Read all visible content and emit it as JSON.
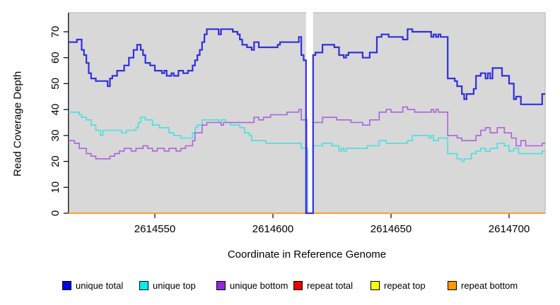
{
  "chart_data": {
    "type": "line",
    "subtype": "step-coverage-plot",
    "title": "",
    "xlabel": "Coordinate in Reference Genome",
    "ylabel": "Read Coverage Depth",
    "xlim": [
      2614513.4,
      2614715.3
    ],
    "ylim": [
      0,
      77.4
    ],
    "x_ticks": [
      2614550,
      2614600,
      2614650,
      2614700
    ],
    "y_ticks": [
      0,
      10,
      20,
      30,
      40,
      50,
      60,
      70
    ],
    "grid": "off",
    "panel_background": "#d8d8d8",
    "panel_border_color": "#b0b0b0",
    "gap_region": {
      "from": 2614614,
      "to": 2614617,
      "fill": "#ffffff",
      "note": "masked region where all unique coverage drops to 0"
    },
    "legend_position": "bottom",
    "legend": [
      {
        "label": "unique total",
        "color": "#0000e8"
      },
      {
        "label": "unique top",
        "color": "#00eeee"
      },
      {
        "label": "unique bottom",
        "color": "#9328e0"
      },
      {
        "label": "repeat total",
        "color": "#e80000"
      },
      {
        "label": "repeat top",
        "color": "#ffff00"
      },
      {
        "label": "repeat bottom",
        "color": "#ff9900"
      }
    ],
    "series": [
      {
        "name": "repeat total",
        "color": "#dd0000",
        "width": 1.5,
        "layer": "below-gap",
        "points": [
          [
            2614513.4,
            0
          ]
        ]
      },
      {
        "name": "repeat top",
        "color": "#ffee00",
        "width": 1.5,
        "layer": "below-gap",
        "points": [
          [
            2614513.4,
            0
          ]
        ]
      },
      {
        "name": "repeat bottom",
        "color": "#ff9d30",
        "width": 2,
        "layer": "below-gap",
        "points": [
          [
            2614513.4,
            0
          ]
        ]
      },
      {
        "name": "unique top",
        "color": "#4adfdf",
        "width": 1.6,
        "layer": "above-gap",
        "points": [
          [
            2614513.4,
            39
          ],
          [
            2614518,
            38
          ],
          [
            2614519,
            37
          ],
          [
            2614521,
            36
          ],
          [
            2614523,
            34
          ],
          [
            2614525,
            32
          ],
          [
            2614527,
            30
          ],
          [
            2614528,
            32
          ],
          [
            2614536,
            31
          ],
          [
            2614538,
            32
          ],
          [
            2614542,
            33
          ],
          [
            2614543,
            35
          ],
          [
            2614544,
            37
          ],
          [
            2614546,
            36
          ],
          [
            2614549,
            34
          ],
          [
            2614552,
            33
          ],
          [
            2614556,
            31
          ],
          [
            2614558,
            30
          ],
          [
            2614561,
            29
          ],
          [
            2614566,
            31
          ],
          [
            2614567,
            33
          ],
          [
            2614568,
            34
          ],
          [
            2614570,
            36
          ],
          [
            2614577,
            35
          ],
          [
            2614578,
            36
          ],
          [
            2614580,
            35
          ],
          [
            2614582,
            34
          ],
          [
            2614586,
            33
          ],
          [
            2614588,
            31
          ],
          [
            2614590,
            30
          ],
          [
            2614591,
            28
          ],
          [
            2614597,
            27
          ],
          [
            2614612,
            25
          ],
          [
            2614614.7,
            0
          ],
          [
            2614617,
            26
          ],
          [
            2614621,
            27
          ],
          [
            2614625,
            26
          ],
          [
            2614628,
            24
          ],
          [
            2614629,
            25
          ],
          [
            2614630,
            24
          ],
          [
            2614631,
            25
          ],
          [
            2614640,
            26
          ],
          [
            2614645,
            28
          ],
          [
            2614648,
            27
          ],
          [
            2614657,
            28
          ],
          [
            2614659,
            30
          ],
          [
            2614666,
            29
          ],
          [
            2614667,
            30
          ],
          [
            2614668,
            28
          ],
          [
            2614670,
            29
          ],
          [
            2614674,
            23
          ],
          [
            2614678,
            21
          ],
          [
            2614680,
            20
          ],
          [
            2614681,
            21
          ],
          [
            2614684,
            23
          ],
          [
            2614686,
            24
          ],
          [
            2614688,
            25
          ],
          [
            2614690,
            24
          ],
          [
            2614692,
            25
          ],
          [
            2614695,
            27
          ],
          [
            2614698,
            26
          ],
          [
            2614700,
            24
          ],
          [
            2614702,
            25
          ],
          [
            2614704,
            23
          ],
          [
            2614714,
            24
          ]
        ]
      },
      {
        "name": "unique bottom",
        "color": "#ab63dc",
        "width": 1.6,
        "layer": "above-gap",
        "points": [
          [
            2614513.4,
            28
          ],
          [
            2614516,
            27
          ],
          [
            2614518,
            25
          ],
          [
            2614521,
            23
          ],
          [
            2614523,
            22
          ],
          [
            2614525,
            21
          ],
          [
            2614531,
            22
          ],
          [
            2614533,
            23
          ],
          [
            2614535,
            24
          ],
          [
            2614537,
            25
          ],
          [
            2614540,
            24
          ],
          [
            2614542,
            25
          ],
          [
            2614545,
            26
          ],
          [
            2614547,
            25
          ],
          [
            2614549,
            24
          ],
          [
            2614551,
            25
          ],
          [
            2614554,
            24
          ],
          [
            2614556,
            25
          ],
          [
            2614559,
            24
          ],
          [
            2614561,
            25
          ],
          [
            2614563,
            26
          ],
          [
            2614566,
            28
          ],
          [
            2614567,
            31
          ],
          [
            2614570,
            34
          ],
          [
            2614572,
            35
          ],
          [
            2614578,
            34
          ],
          [
            2614579,
            35
          ],
          [
            2614592,
            37
          ],
          [
            2614594,
            36
          ],
          [
            2614596,
            37
          ],
          [
            2614599,
            38
          ],
          [
            2614606,
            39
          ],
          [
            2614611,
            40
          ],
          [
            2614612,
            36
          ],
          [
            2614614.35,
            0
          ],
          [
            2614617,
            35
          ],
          [
            2614621,
            37
          ],
          [
            2614627,
            36
          ],
          [
            2614633,
            35
          ],
          [
            2614638,
            34
          ],
          [
            2614641,
            36
          ],
          [
            2614645,
            39
          ],
          [
            2614648,
            40
          ],
          [
            2614650,
            39
          ],
          [
            2614655,
            41
          ],
          [
            2614657,
            40
          ],
          [
            2614660,
            39
          ],
          [
            2614667,
            40
          ],
          [
            2614668,
            39
          ],
          [
            2614669,
            40
          ],
          [
            2614670,
            39
          ],
          [
            2614674,
            30
          ],
          [
            2614678,
            29
          ],
          [
            2614680,
            28
          ],
          [
            2614686,
            30
          ],
          [
            2614688,
            32
          ],
          [
            2614690,
            33
          ],
          [
            2614692,
            31
          ],
          [
            2614695,
            33
          ],
          [
            2614698,
            31
          ],
          [
            2614701,
            29
          ],
          [
            2614703,
            26
          ],
          [
            2614705,
            28
          ],
          [
            2614707,
            26
          ],
          [
            2614714,
            27
          ]
        ]
      },
      {
        "name": "unique total",
        "color": "#3030df",
        "width": 2.2,
        "layer": "above-gap",
        "points": [
          [
            2614513.4,
            66
          ],
          [
            2614517,
            67
          ],
          [
            2614519,
            63
          ],
          [
            2614520,
            61
          ],
          [
            2614521,
            58
          ],
          [
            2614522,
            54
          ],
          [
            2614523,
            52
          ],
          [
            2614525,
            51
          ],
          [
            2614530,
            49
          ],
          [
            2614531,
            52
          ],
          [
            2614532,
            53
          ],
          [
            2614534,
            55
          ],
          [
            2614537,
            57
          ],
          [
            2614539,
            60
          ],
          [
            2614541,
            63
          ],
          [
            2614542.5,
            65
          ],
          [
            2614544,
            63
          ],
          [
            2614545,
            61
          ],
          [
            2614546,
            58
          ],
          [
            2614548,
            57
          ],
          [
            2614550,
            55
          ],
          [
            2614553,
            54
          ],
          [
            2614554,
            55
          ],
          [
            2614555,
            53
          ],
          [
            2614557,
            54
          ],
          [
            2614558,
            53
          ],
          [
            2614560,
            55
          ],
          [
            2614562,
            54
          ],
          [
            2614564,
            55
          ],
          [
            2614566,
            57
          ],
          [
            2614567,
            59
          ],
          [
            2614568,
            61
          ],
          [
            2614569,
            63
          ],
          [
            2614570,
            66
          ],
          [
            2614571,
            69
          ],
          [
            2614572,
            71
          ],
          [
            2614577,
            69
          ],
          [
            2614578,
            71
          ],
          [
            2614583,
            70
          ],
          [
            2614585,
            69
          ],
          [
            2614586,
            67
          ],
          [
            2614587,
            65
          ],
          [
            2614589,
            64
          ],
          [
            2614591,
            63
          ],
          [
            2614592,
            66
          ],
          [
            2614594,
            64
          ],
          [
            2614602,
            65
          ],
          [
            2614603,
            66
          ],
          [
            2614611,
            68
          ],
          [
            2614612,
            61
          ],
          [
            2614613,
            59
          ],
          [
            2614614,
            0
          ],
          [
            2614617,
            61
          ],
          [
            2614618,
            62
          ],
          [
            2614621,
            65
          ],
          [
            2614626,
            64
          ],
          [
            2614628,
            61
          ],
          [
            2614630,
            60
          ],
          [
            2614631,
            61
          ],
          [
            2614632,
            62
          ],
          [
            2614638,
            60
          ],
          [
            2614641,
            62
          ],
          [
            2614644,
            68
          ],
          [
            2614646,
            69
          ],
          [
            2614649,
            68
          ],
          [
            2614655,
            67
          ],
          [
            2614657,
            71
          ],
          [
            2614659,
            70
          ],
          [
            2614667,
            68
          ],
          [
            2614668,
            69
          ],
          [
            2614669,
            68
          ],
          [
            2614670,
            69
          ],
          [
            2614671,
            68
          ],
          [
            2614674,
            52
          ],
          [
            2614677,
            51
          ],
          [
            2614678,
            49
          ],
          [
            2614680,
            46
          ],
          [
            2614681,
            44
          ],
          [
            2614682,
            46
          ],
          [
            2614685,
            48
          ],
          [
            2614686,
            53
          ],
          [
            2614688,
            54
          ],
          [
            2614690,
            52
          ],
          [
            2614691,
            54
          ],
          [
            2614692,
            52
          ],
          [
            2614693,
            56
          ],
          [
            2614697,
            53
          ],
          [
            2614700,
            50
          ],
          [
            2614702,
            44
          ],
          [
            2614703,
            45
          ],
          [
            2614705,
            42
          ],
          [
            2614714,
            46
          ]
        ]
      }
    ]
  },
  "legend_x_positions": [
    88,
    197,
    306,
    415,
    524,
    633
  ]
}
